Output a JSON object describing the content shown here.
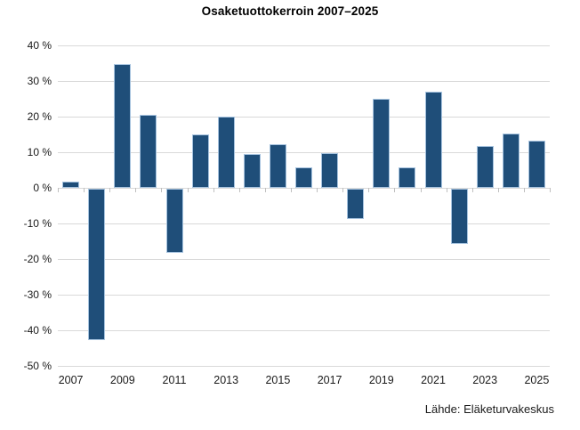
{
  "page": {
    "background_color": "#ffffff",
    "text_color": "#1a1a1a"
  },
  "chart_data": {
    "type": "bar",
    "title": "Osaketuottokerroin 2007–2025",
    "source": "Lähde: Eläketurvakeskus",
    "categories": [
      2007,
      2008,
      2009,
      2010,
      2011,
      2012,
      2013,
      2014,
      2015,
      2016,
      2017,
      2018,
      2019,
      2020,
      2021,
      2022,
      2023,
      2024,
      2025
    ],
    "values": [
      1.8,
      -42.6,
      34.7,
      20.6,
      -17.9,
      15.0,
      20.0,
      9.6,
      12.3,
      5.8,
      9.7,
      -8.4,
      25.1,
      5.8,
      26.9,
      -15.6,
      11.7,
      15.3,
      13.3
    ],
    "xlabel": "",
    "ylabel": "",
    "ylim": [
      -50,
      40
    ],
    "y_tick_step": 10,
    "y_tick_labels": [
      "40 %",
      "30 %",
      "20 %",
      "10 %",
      "0 %",
      "-10 %",
      "-20 %",
      "-30 %",
      "-40 %",
      "-50 %"
    ],
    "x_tick_labels": [
      "2007",
      "2009",
      "2011",
      "2013",
      "2015",
      "2017",
      "2019",
      "2021",
      "2023",
      "2025"
    ],
    "grid": "horizontal",
    "legend": "none",
    "bar_color": "#1F4E79",
    "bar_border_color": "#A6C3DF",
    "gridline_color": "#D9D9D9",
    "tick_color": "#BFBFBF"
  }
}
